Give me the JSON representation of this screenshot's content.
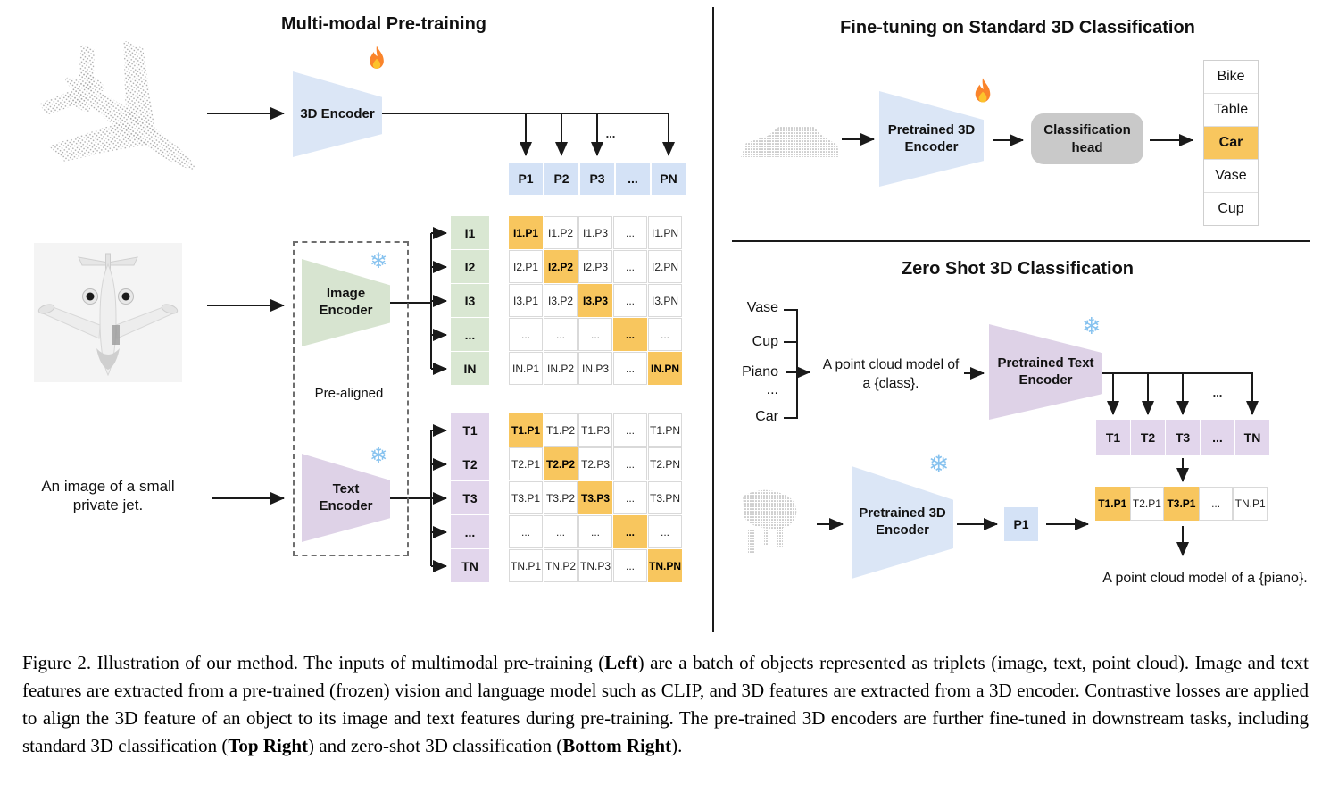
{
  "left": {
    "title": "Multi-modal Pre-training",
    "encoder_3d_label": "3D Encoder",
    "image_encoder_label": "Image\nEncoder",
    "text_encoder_label": "Text\nEncoder",
    "pre_aligned_label": "Pre-aligned",
    "image_caption_text": "An image of a small\nprivate jet.",
    "dots_above_pn": "...",
    "p_row": [
      "P1",
      "P2",
      "P3",
      "...",
      "PN"
    ],
    "i_labels": [
      "I1",
      "I2",
      "I3",
      "...",
      "IN"
    ],
    "t_labels": [
      "T1",
      "T2",
      "T3",
      "...",
      "TN"
    ],
    "i_matrix": [
      [
        "I1.P1",
        "I1.P2",
        "I1.P3",
        "...",
        "I1.PN"
      ],
      [
        "I2.P1",
        "I2.P2",
        "I2.P3",
        "...",
        "I2.PN"
      ],
      [
        "I3.P1",
        "I3.P2",
        "I3.P3",
        "...",
        "I3.PN"
      ],
      [
        "...",
        "...",
        "...",
        "...",
        "..."
      ],
      [
        "IN.P1",
        "IN.P2",
        "IN.P3",
        "...",
        "IN.PN"
      ]
    ],
    "t_matrix": [
      [
        "T1.P1",
        "T1.P2",
        "T1.P3",
        "...",
        "T1.PN"
      ],
      [
        "T2.P1",
        "T2.P2",
        "T2.P3",
        "...",
        "T2.PN"
      ],
      [
        "T3.P1",
        "T3.P2",
        "T3.P3",
        "...",
        "T3.PN"
      ],
      [
        "...",
        "...",
        "...",
        "...",
        "..."
      ],
      [
        "TN.P1",
        "TN.P2",
        "TN.P3",
        "...",
        "TN.PN"
      ]
    ]
  },
  "right_top": {
    "title": "Fine-tuning on Standard 3D Classification",
    "encoder_label": "Pretrained 3D\nEncoder",
    "head_label": "Classification\nhead",
    "classes": [
      "Bike",
      "Table",
      "Car",
      "Vase",
      "Cup"
    ],
    "highlighted_class": "Car"
  },
  "right_bottom": {
    "title": "Zero Shot 3D Classification",
    "class_words": [
      "Vase",
      "Cup",
      "Piano",
      "...",
      "Car"
    ],
    "prompt_text": "A point cloud model of\na {class}.",
    "text_encoder_label": "Pretrained Text\nEncoder",
    "dots_above_tn": "...",
    "t_row": [
      "T1",
      "T2",
      "T3",
      "...",
      "TN"
    ],
    "encoder_3d_label": "Pretrained 3D\nEncoder",
    "p_cell_label": "P1",
    "similarity_row": [
      "T1.P1",
      "T2.P1",
      "T3.P1",
      "...",
      "TN.P1"
    ],
    "highlighted_cell": "T3.P1",
    "result_text": "A point cloud model of a {piano}."
  },
  "icons": {
    "flame": "🔥",
    "snowflake": "❄"
  },
  "colors": {
    "highlight": "#f8c65e",
    "cell_blue": "#d4e2f6",
    "cell_green": "#d9e7d2",
    "cell_purple": "#e2d6ec",
    "trap_blue": "#dbe6f6",
    "trap_green": "#d7e4d0",
    "trap_purple": "#ded2e7",
    "head_gray": "#c9c9c9"
  },
  "caption": {
    "segments": [
      {
        "text": "Figure 2. Illustration of our method. The inputs of multimodal pre-training (",
        "bold": false
      },
      {
        "text": "Left",
        "bold": true
      },
      {
        "text": ") are a batch of objects represented as triplets (image, text, point cloud). Image and text features are extracted from a pre-trained (frozen) vision and language model such as CLIP, and 3D features are extracted from a 3D encoder. Contrastive losses are applied to align the 3D feature of an object to its image and text features during pre-training. The pre-trained 3D encoders are further fine-tuned in downstream tasks, including standard 3D classification (",
        "bold": false
      },
      {
        "text": "Top Right",
        "bold": true
      },
      {
        "text": ") and zero-shot 3D classification (",
        "bold": false
      },
      {
        "text": "Bottom Right",
        "bold": true
      },
      {
        "text": ").",
        "bold": false
      }
    ]
  }
}
